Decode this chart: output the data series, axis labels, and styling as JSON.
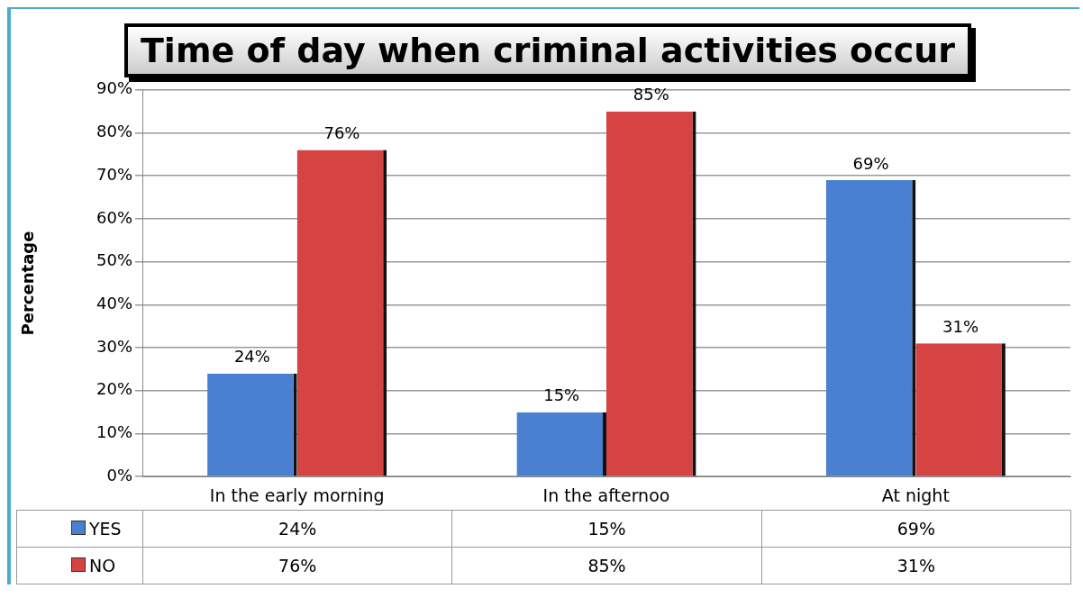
{
  "chart_data": {
    "type": "bar",
    "title": "Time of day when criminal activities occur",
    "ylabel": "Percentage",
    "categories": [
      "In the early morning",
      "In the afternoo",
      "At night"
    ],
    "series": [
      {
        "name": "YES",
        "color": "#4a80d2",
        "values": [
          24,
          15,
          69
        ],
        "value_labels": [
          "24%",
          "15%",
          "69%"
        ]
      },
      {
        "name": "NO",
        "color": "#d54343",
        "values": [
          76,
          85,
          31
        ],
        "value_labels": [
          "76%",
          "85%",
          "31%"
        ]
      }
    ],
    "ylim": [
      0,
      90
    ],
    "yticks": [
      {
        "value": 0,
        "label": "0%"
      },
      {
        "value": 10,
        "label": "10%"
      },
      {
        "value": 20,
        "label": "20%"
      },
      {
        "value": 30,
        "label": "30%"
      },
      {
        "value": 40,
        "label": "40%"
      },
      {
        "value": 50,
        "label": "50%"
      },
      {
        "value": 60,
        "label": "60%"
      },
      {
        "value": 70,
        "label": "70%"
      },
      {
        "value": 80,
        "label": "80%"
      },
      {
        "value": 90,
        "label": "90%"
      }
    ],
    "grid": "y",
    "legend": "bottom"
  }
}
